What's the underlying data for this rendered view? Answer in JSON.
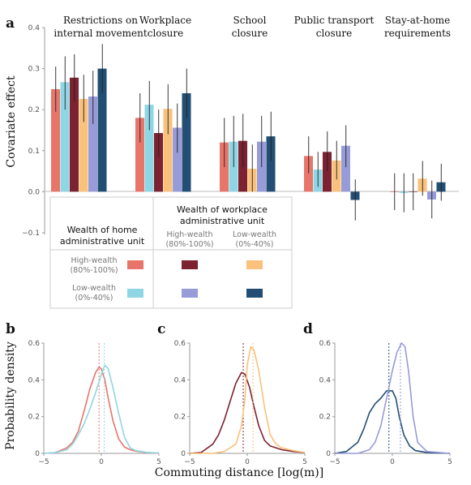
{
  "colors": {
    "home_high_work_high": "#e8756a",
    "home_high_work_mid": "#7c2230",
    "home_high_work_low": "#f9c17b",
    "home_low_work_high": "#8fd6e4",
    "home_low_work_mid": "#979bd8",
    "home_low_work_low": "#234e73"
  },
  "panel_a": {
    "letter": "a",
    "ylabel": "Covariate effect",
    "yticks": [
      "0.4",
      "0.3",
      "0.2",
      "0.1",
      "0.0",
      "−0.1"
    ],
    "legend": {
      "home_title": [
        "Wealth of home",
        "administrative unit"
      ],
      "work_title": [
        "Wealth of workplace",
        "administrative unit"
      ],
      "col_high": [
        "High-wealth",
        "(80%-100%)"
      ],
      "col_low": [
        "Low-wealth",
        "(0%-40%)"
      ],
      "row_high": [
        "High-wealth",
        "(80%-100%)"
      ],
      "row_low": [
        "Low-wealth",
        "(0%-40%)"
      ]
    }
  },
  "chart_data": [
    {
      "panel": "a",
      "type": "bar",
      "ylabel": "Covariate effect",
      "ylim": [
        -0.1,
        0.4
      ],
      "categories": [
        [
          "Restrictions on",
          "internal movement"
        ],
        [
          "Workplace",
          "closure"
        ],
        [
          "School",
          "closure"
        ],
        [
          "Public transport",
          "closure"
        ],
        [
          "Stay-at-home",
          "requirements"
        ]
      ],
      "series": [
        {
          "color_key": "home_high_work_high",
          "values": [
            0.25,
            0.18,
            0.12,
            0.087,
            0.0
          ],
          "err": [
            [
              0.195,
              0.305
            ],
            [
              0.12,
              0.24
            ],
            [
              0.06,
              0.18
            ],
            [
              0.045,
              0.135
            ],
            [
              -0.045,
              0.045
            ]
          ]
        },
        {
          "color_key": "home_low_work_high",
          "values": [
            0.267,
            0.212,
            0.122,
            0.054,
            -0.003
          ],
          "err": [
            [
              0.2,
              0.33
            ],
            [
              0.15,
              0.27
            ],
            [
              0.06,
              0.185
            ],
            [
              0.012,
              0.097
            ],
            [
              -0.05,
              0.045
            ]
          ]
        },
        {
          "color_key": "home_high_work_mid",
          "values": [
            0.278,
            0.143,
            0.124,
            0.097,
            0.0
          ],
          "err": [
            [
              0.22,
              0.335
            ],
            [
              0.085,
              0.2
            ],
            [
              0.06,
              0.19
            ],
            [
              0.05,
              0.147
            ],
            [
              -0.045,
              0.045
            ]
          ]
        },
        {
          "color_key": "home_high_work_low",
          "values": [
            0.226,
            0.202,
            0.056,
            0.076,
            0.032
          ],
          "err": [
            [
              0.17,
              0.285
            ],
            [
              0.14,
              0.262
            ],
            [
              0.0,
              0.115
            ],
            [
              0.03,
              0.124
            ],
            [
              -0.01,
              0.075
            ]
          ]
        },
        {
          "color_key": "home_low_work_mid",
          "values": [
            0.232,
            0.156,
            0.122,
            0.112,
            -0.019
          ],
          "err": [
            [
              0.165,
              0.295
            ],
            [
              0.095,
              0.215
            ],
            [
              0.06,
              0.185
            ],
            [
              0.06,
              0.162
            ],
            [
              -0.065,
              0.027
            ]
          ]
        },
        {
          "color_key": "home_low_work_low",
          "values": [
            0.3,
            0.24,
            0.135,
            -0.02,
            0.023
          ],
          "err": [
            [
              0.24,
              0.36
            ],
            [
              0.18,
              0.3
            ],
            [
              0.075,
              0.195
            ],
            [
              -0.07,
              0.03
            ],
            [
              -0.022,
              0.068
            ]
          ]
        }
      ]
    },
    {
      "panel": "b",
      "type": "line",
      "xlabel": "Commuting distance [log(m)]",
      "ylabel": "Probability density",
      "xlim": [
        -5,
        5
      ],
      "ylim": [
        0,
        0.6
      ],
      "xticks": [
        "−5",
        "0",
        "5"
      ],
      "yticks": [
        "0",
        "0.2",
        "0.4",
        "0.6"
      ],
      "series": [
        {
          "color_key": "home_high_work_high",
          "mean": -0.2,
          "points": [
            [
              -5,
              0.0
            ],
            [
              -4,
              0.004
            ],
            [
              -3,
              0.03
            ],
            [
              -2.5,
              0.06
            ],
            [
              -2,
              0.12
            ],
            [
              -1.5,
              0.23
            ],
            [
              -1,
              0.35
            ],
            [
              -0.5,
              0.44
            ],
            [
              -0.2,
              0.47
            ],
            [
              0,
              0.46
            ],
            [
              0.3,
              0.4
            ],
            [
              0.6,
              0.3
            ],
            [
              1,
              0.18
            ],
            [
              1.5,
              0.08
            ],
            [
              2,
              0.035
            ],
            [
              2.5,
              0.02
            ],
            [
              3,
              0.012
            ],
            [
              4,
              0.004
            ],
            [
              5,
              0.002
            ]
          ]
        },
        {
          "color_key": "home_low_work_high",
          "mean": 0.25,
          "points": [
            [
              -5,
              0.0
            ],
            [
              -4,
              0.004
            ],
            [
              -3,
              0.02
            ],
            [
              -2.5,
              0.05
            ],
            [
              -2,
              0.1
            ],
            [
              -1.5,
              0.16
            ],
            [
              -1,
              0.24
            ],
            [
              -0.5,
              0.33
            ],
            [
              0,
              0.43
            ],
            [
              0.3,
              0.48
            ],
            [
              0.6,
              0.46
            ],
            [
              1,
              0.36
            ],
            [
              1.5,
              0.22
            ],
            [
              2,
              0.09
            ],
            [
              2.5,
              0.03
            ],
            [
              3,
              0.015
            ],
            [
              4,
              0.005
            ],
            [
              5,
              0.002
            ]
          ]
        }
      ]
    },
    {
      "panel": "c",
      "type": "line",
      "xlabel": "Commuting distance [log(m)]",
      "xlim": [
        -5,
        5
      ],
      "ylim": [
        0,
        0.6
      ],
      "xticks": [
        "−5",
        "0",
        "5"
      ],
      "yticks": [
        "0",
        "0.2",
        "0.4",
        "0.6"
      ],
      "series": [
        {
          "color_key": "home_high_work_mid",
          "mean": -0.35,
          "points": [
            [
              -5,
              0.0
            ],
            [
              -4,
              0.005
            ],
            [
              -3,
              0.05
            ],
            [
              -2.5,
              0.1
            ],
            [
              -2,
              0.18
            ],
            [
              -1.5,
              0.28
            ],
            [
              -1,
              0.38
            ],
            [
              -0.5,
              0.44
            ],
            [
              -0.2,
              0.43
            ],
            [
              0.2,
              0.36
            ],
            [
              0.6,
              0.25
            ],
            [
              1,
              0.15
            ],
            [
              1.5,
              0.07
            ],
            [
              2,
              0.04
            ],
            [
              3,
              0.02
            ],
            [
              4,
              0.01
            ],
            [
              5,
              0.005
            ]
          ]
        },
        {
          "color_key": "home_high_work_low",
          "mean": 0.5,
          "points": [
            [
              -5,
              0.0
            ],
            [
              -3,
              0.0
            ],
            [
              -2,
              0.01
            ],
            [
              -1,
              0.05
            ],
            [
              -0.5,
              0.15
            ],
            [
              -0.2,
              0.3
            ],
            [
              0,
              0.48
            ],
            [
              0.3,
              0.58
            ],
            [
              0.6,
              0.56
            ],
            [
              1,
              0.45
            ],
            [
              1.5,
              0.25
            ],
            [
              2,
              0.1
            ],
            [
              2.5,
              0.05
            ],
            [
              3,
              0.03
            ],
            [
              4,
              0.015
            ],
            [
              5,
              0.005
            ]
          ]
        }
      ]
    },
    {
      "panel": "d",
      "type": "line",
      "xlabel": "Commuting distance [log(m)]",
      "xlim": [
        -5,
        5
      ],
      "ylim": [
        0,
        0.6
      ],
      "xticks": [
        "−5",
        "0",
        "5"
      ],
      "yticks": [
        "0",
        "0.2",
        "0.4",
        "0.6"
      ],
      "series": [
        {
          "color_key": "home_low_work_low",
          "mean": -0.3,
          "points": [
            [
              -5,
              0.0
            ],
            [
              -4,
              0.01
            ],
            [
              -3,
              0.06
            ],
            [
              -2.5,
              0.13
            ],
            [
              -2,
              0.22
            ],
            [
              -1.5,
              0.27
            ],
            [
              -1,
              0.3
            ],
            [
              -0.5,
              0.34
            ],
            [
              0,
              0.34
            ],
            [
              0.3,
              0.3
            ],
            [
              0.6,
              0.2
            ],
            [
              1,
              0.1
            ],
            [
              1.5,
              0.04
            ],
            [
              2,
              0.015
            ],
            [
              3,
              0.005
            ],
            [
              5,
              0.0
            ]
          ]
        },
        {
          "color_key": "home_low_work_mid",
          "mean": 0.7,
          "points": [
            [
              -5,
              0.0
            ],
            [
              -3,
              0.0
            ],
            [
              -2,
              0.02
            ],
            [
              -1.5,
              0.06
            ],
            [
              -1,
              0.15
            ],
            [
              -0.5,
              0.3
            ],
            [
              0,
              0.45
            ],
            [
              0.4,
              0.55
            ],
            [
              0.8,
              0.6
            ],
            [
              1.1,
              0.58
            ],
            [
              1.4,
              0.45
            ],
            [
              1.8,
              0.2
            ],
            [
              2.2,
              0.06
            ],
            [
              3,
              0.01
            ],
            [
              5,
              0.0
            ]
          ]
        }
      ]
    }
  ]
}
